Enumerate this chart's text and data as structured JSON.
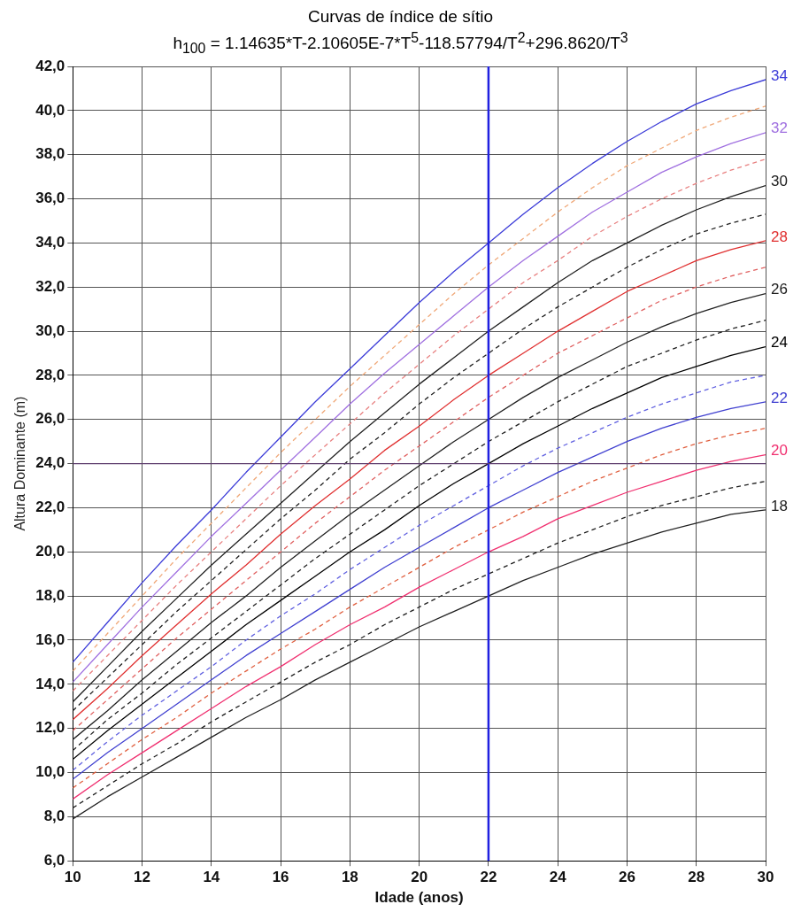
{
  "chart_data": {
    "type": "line",
    "title": "Curvas de índice de sítio",
    "subtitle": "h$_{100}$ = 1.14635*T-2.10605E-7*T$^{5}$-118.57794/T$^{2}$+296.8620/T$^{3}$",
    "xlabel": "Idade (anos)",
    "ylabel": "Altura Dominante (m)",
    "x": [
      10,
      11,
      12,
      13,
      14,
      15,
      16,
      17,
      18,
      19,
      20,
      21,
      22,
      23,
      24,
      25,
      26,
      27,
      28,
      29,
      30
    ],
    "series": [
      {
        "name": "34",
        "color": "#3c3cd8",
        "line_style": "solid",
        "values": [
          15.0,
          16.8,
          18.6,
          20.3,
          21.9,
          23.6,
          25.2,
          26.8,
          28.3,
          29.8,
          31.3,
          32.7,
          34,
          35.3,
          36.5,
          37.6,
          38.6,
          39.5,
          40.3,
          40.9,
          41.4
        ]
      },
      {
        "color": "#f0a878",
        "line_style": "dashed",
        "values": [
          14.6,
          16.3,
          18.0,
          19.7,
          21.3,
          22.9,
          24.5,
          26.0,
          27.5,
          28.9,
          30.3,
          31.7,
          33,
          34.2,
          35.4,
          36.5,
          37.5,
          38.3,
          39.1,
          39.7,
          40.2
        ]
      },
      {
        "name": "32",
        "color": "#a070e0",
        "line_style": "solid",
        "values": [
          14.1,
          15.8,
          17.5,
          19.1,
          20.7,
          22.2,
          23.7,
          25.2,
          26.7,
          28.1,
          29.4,
          30.7,
          32,
          33.2,
          34.3,
          35.4,
          36.3,
          37.2,
          37.9,
          38.5,
          39.0
        ]
      },
      {
        "color": "#e88080",
        "line_style": "dashed",
        "values": [
          13.7,
          15.3,
          16.9,
          18.5,
          20.0,
          21.5,
          23.0,
          24.4,
          25.8,
          27.2,
          28.5,
          29.8,
          31,
          32.2,
          33.2,
          34.3,
          35.2,
          36.0,
          36.7,
          37.3,
          37.8
        ]
      },
      {
        "name": "30",
        "color": "#202020",
        "line_style": "solid",
        "values": [
          13.2,
          14.8,
          16.4,
          17.9,
          19.4,
          20.8,
          22.2,
          23.6,
          25.0,
          26.3,
          27.6,
          28.8,
          30,
          31.1,
          32.2,
          33.2,
          34.0,
          34.8,
          35.5,
          36.1,
          36.6
        ]
      },
      {
        "color": "#202020",
        "line_style": "dashed",
        "values": [
          12.8,
          14.3,
          15.8,
          17.3,
          18.7,
          20.1,
          21.5,
          22.8,
          24.2,
          25.4,
          26.7,
          27.9,
          29,
          30.1,
          31.1,
          32.0,
          32.9,
          33.7,
          34.4,
          34.9,
          35.3
        ]
      },
      {
        "name": "28",
        "color": "#e03030",
        "line_style": "solid",
        "values": [
          12.4,
          13.8,
          15.3,
          16.7,
          18.1,
          19.4,
          20.8,
          22.1,
          23.3,
          24.6,
          25.7,
          26.9,
          28,
          29.0,
          30.0,
          30.9,
          31.8,
          32.5,
          33.2,
          33.7,
          34.1
        ]
      },
      {
        "color": "#e06060",
        "line_style": "dashed",
        "values": [
          11.9,
          13.3,
          14.7,
          16.1,
          17.4,
          18.7,
          20.0,
          21.3,
          22.5,
          23.7,
          24.8,
          25.9,
          27,
          28.0,
          29.0,
          29.8,
          30.6,
          31.4,
          32.0,
          32.5,
          32.9
        ]
      },
      {
        "name": "26",
        "color": "#202020",
        "line_style": "solid",
        "values": [
          11.5,
          12.8,
          14.2,
          15.5,
          16.8,
          18.0,
          19.3,
          20.5,
          21.7,
          22.8,
          23.9,
          25.0,
          26,
          27.0,
          27.9,
          28.7,
          29.5,
          30.2,
          30.8,
          31.3,
          31.7
        ]
      },
      {
        "color": "#202020",
        "line_style": "dashed",
        "values": [
          11.0,
          12.4,
          13.6,
          14.9,
          16.1,
          17.3,
          18.5,
          19.7,
          20.8,
          21.9,
          23.0,
          24.0,
          25,
          25.9,
          26.8,
          27.6,
          28.4,
          29.0,
          29.6,
          30.1,
          30.5
        ]
      },
      {
        "name": "24",
        "color": "#000000",
        "line_style": "solid",
        "values": [
          10.6,
          11.9,
          13.1,
          14.3,
          15.5,
          16.7,
          17.8,
          18.9,
          20.0,
          21.0,
          22.1,
          23.1,
          24,
          24.9,
          25.7,
          26.5,
          27.2,
          27.9,
          28.4,
          28.9,
          29.3
        ]
      },
      {
        "color": "#6060e0",
        "line_style": "dashed",
        "values": [
          10.1,
          11.4,
          12.6,
          13.7,
          14.8,
          16.0,
          17.1,
          18.1,
          19.2,
          20.2,
          21.2,
          22.1,
          23,
          23.9,
          24.7,
          25.4,
          26.1,
          26.7,
          27.2,
          27.7,
          28.0
        ]
      },
      {
        "name": "22",
        "color": "#4040d0",
        "line_style": "solid",
        "values": [
          9.7,
          10.9,
          12.0,
          13.1,
          14.2,
          15.3,
          16.3,
          17.3,
          18.3,
          19.3,
          20.2,
          21.1,
          22,
          22.8,
          23.6,
          24.3,
          25.0,
          25.6,
          26.1,
          26.5,
          26.8
        ]
      },
      {
        "color": "#e06040",
        "line_style": "dashed",
        "values": [
          9.3,
          10.4,
          11.5,
          12.5,
          13.6,
          14.6,
          15.6,
          16.5,
          17.5,
          18.4,
          19.3,
          20.2,
          21,
          21.8,
          22.5,
          23.2,
          23.8,
          24.4,
          24.9,
          25.3,
          25.6
        ]
      },
      {
        "name": "20",
        "color": "#f03070",
        "line_style": "solid",
        "values": [
          8.8,
          9.9,
          10.9,
          11.9,
          12.9,
          13.9,
          14.8,
          15.8,
          16.7,
          17.5,
          18.4,
          19.2,
          20,
          20.7,
          21.5,
          22.1,
          22.7,
          23.2,
          23.7,
          24.1,
          24.4
        ]
      },
      {
        "color": "#202020",
        "line_style": "dashed",
        "values": [
          8.4,
          9.4,
          10.4,
          11.3,
          12.3,
          13.2,
          14.1,
          15.0,
          15.8,
          16.7,
          17.5,
          18.3,
          19,
          19.7,
          20.4,
          21.0,
          21.6,
          22.1,
          22.5,
          22.9,
          23.2
        ]
      },
      {
        "name": "18",
        "color": "#202020",
        "line_style": "solid",
        "values": [
          7.9,
          8.9,
          9.8,
          10.7,
          11.6,
          12.5,
          13.3,
          14.2,
          15.0,
          15.8,
          16.6,
          17.3,
          18,
          18.7,
          19.3,
          19.9,
          20.4,
          20.9,
          21.3,
          21.7,
          21.9
        ]
      }
    ],
    "xlim": [
      10,
      30
    ],
    "xticks": [
      10,
      12,
      14,
      16,
      18,
      20,
      22,
      24,
      26,
      28,
      30
    ],
    "ylim": [
      6,
      42
    ],
    "yticks": [
      {
        "value": 6,
        "label": "6,0"
      },
      {
        "value": 8,
        "label": "8,0"
      },
      {
        "value": 10,
        "label": "10,0"
      },
      {
        "value": 12,
        "label": "12,0"
      },
      {
        "value": 14,
        "label": "14,0"
      },
      {
        "value": 16,
        "label": "16,0"
      },
      {
        "value": 18,
        "label": "18,0"
      },
      {
        "value": 20,
        "label": "20,0"
      },
      {
        "value": 22,
        "label": "22,0"
      },
      {
        "value": 24,
        "label": "24,0"
      },
      {
        "value": 26,
        "label": "26,0"
      },
      {
        "value": 28,
        "label": "28,0"
      },
      {
        "value": 30,
        "label": "30,0"
      },
      {
        "value": 32,
        "label": "32,0"
      },
      {
        "value": 34,
        "label": "34,0"
      },
      {
        "value": 36,
        "label": "36,0"
      },
      {
        "value": 38,
        "label": "38,0"
      },
      {
        "value": 40,
        "label": "40,0"
      },
      {
        "value": 42,
        "label": "42,0"
      }
    ],
    "ref_lines": [
      {
        "axis": "x",
        "value": 22,
        "color": "#2020e0"
      },
      {
        "axis": "y",
        "value": 24,
        "color": "#604070"
      }
    ],
    "grid": true,
    "legend": false,
    "marker": "none"
  }
}
